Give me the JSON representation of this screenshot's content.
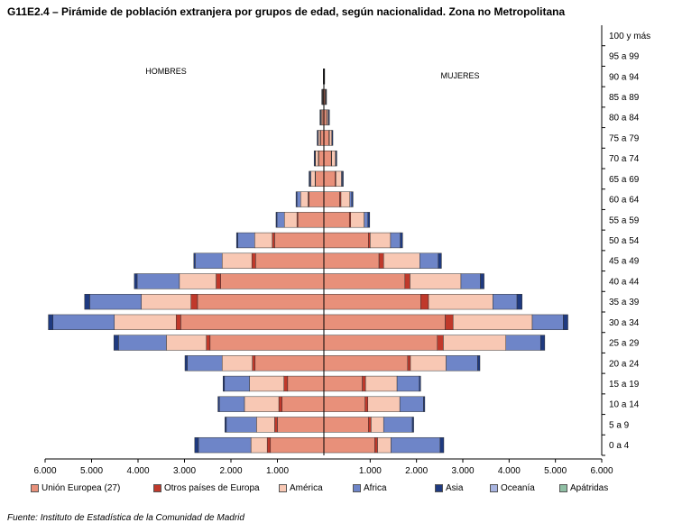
{
  "title": "G11E2.4 – Pirámide de población extranjera por grupos de edad, según nacionalidad. Zona no Metropolitana",
  "source": "Fuente: Instituto de Estadística de la Comunidad de Madrid",
  "colors": {
    "ue27": "#E8907A",
    "otros_europa": "#C0392B",
    "america": "#F8C8B4",
    "africa": "#6E85C8",
    "asia": "#1F3A80",
    "oceania": "#A8B4E0",
    "apatridas": "#8FBFA4"
  },
  "chart_data": {
    "type": "bar",
    "orientation": "horizontal",
    "stacked": true,
    "side_labels": {
      "left": "HOMBRES",
      "right": "MUJERES"
    },
    "xlim": [
      -6000,
      6000
    ],
    "x_tick_values": [
      -6000,
      -5000,
      -4000,
      -3000,
      -2000,
      -1000,
      1000,
      2000,
      3000,
      4000,
      5000,
      6000
    ],
    "x_tick_labels": [
      "6.000",
      "5.000",
      "4.000",
      "3.000",
      "2.000",
      "1.000",
      "1.000",
      "2.000",
      "3.000",
      "4.000",
      "5.000",
      "6.000"
    ],
    "categories": [
      "0 a 4",
      "5 a 9",
      "10 a 14",
      "15 a 19",
      "20 a 24",
      "25 a 29",
      "30 a 34",
      "35 a 39",
      "40 a 44",
      "45 a 49",
      "50 a 54",
      "55 a 59",
      "60 a 64",
      "65 a 69",
      "70 a 74",
      "75 a 79",
      "80 a 84",
      "85 a 89",
      "90 a 94",
      "95 a 99",
      "100 y más"
    ],
    "legend": [
      "Unión Europea (27)",
      "Otros países de Europa",
      "América",
      "Africa",
      "Asia",
      "Oceanía",
      "Apátridas"
    ],
    "series_colors": [
      "#E8907A",
      "#C0392B",
      "#F8C8B4",
      "#6E85C8",
      "#1F3A80",
      "#A8B4E0",
      "#8FBFA4"
    ],
    "hombres": [
      [
        1150,
        70,
        350,
        1130,
        80,
        0,
        0
      ],
      [
        1000,
        60,
        390,
        650,
        30,
        0,
        0
      ],
      [
        900,
        70,
        740,
        540,
        30,
        0,
        0
      ],
      [
        780,
        80,
        740,
        540,
        30,
        0,
        0
      ],
      [
        1480,
        60,
        650,
        750,
        50,
        0,
        0
      ],
      [
        2450,
        80,
        860,
        1030,
        100,
        0,
        0
      ],
      [
        3080,
        100,
        1330,
        1320,
        100,
        0,
        0
      ],
      [
        2720,
        140,
        1070,
        1110,
        110,
        0,
        0
      ],
      [
        2220,
        100,
        790,
        910,
        60,
        0,
        0
      ],
      [
        1470,
        80,
        640,
        580,
        30,
        0,
        0
      ],
      [
        1060,
        50,
        380,
        360,
        30,
        0,
        0
      ],
      [
        560,
        20,
        270,
        160,
        20,
        0,
        0
      ],
      [
        320,
        20,
        160,
        80,
        20,
        0,
        0
      ],
      [
        180,
        10,
        90,
        20,
        20,
        0,
        0
      ],
      [
        110,
        10,
        60,
        10,
        20,
        0,
        0
      ],
      [
        70,
        10,
        40,
        5,
        20,
        0,
        0
      ],
      [
        40,
        5,
        20,
        5,
        15,
        0,
        0
      ],
      [
        20,
        3,
        10,
        3,
        10,
        0,
        0
      ],
      [
        5,
        1,
        2,
        1,
        5,
        0,
        0
      ],
      [
        0,
        0,
        0,
        0,
        0,
        0,
        0
      ],
      [
        0,
        0,
        0,
        0,
        0,
        0,
        0
      ]
    ],
    "mujeres": [
      [
        1100,
        60,
        290,
        1060,
        80,
        0,
        0
      ],
      [
        960,
        60,
        270,
        620,
        30,
        0,
        0
      ],
      [
        890,
        60,
        690,
        510,
        30,
        0,
        0
      ],
      [
        830,
        70,
        680,
        480,
        30,
        0,
        0
      ],
      [
        1810,
        60,
        770,
        680,
        50,
        0,
        0
      ],
      [
        2450,
        130,
        1350,
        750,
        90,
        0,
        0
      ],
      [
        2620,
        170,
        1710,
        670,
        100,
        0,
        0
      ],
      [
        2090,
        170,
        1390,
        520,
        110,
        0,
        0
      ],
      [
        1750,
        110,
        1100,
        420,
        80,
        0,
        0
      ],
      [
        1190,
        100,
        780,
        400,
        70,
        0,
        0
      ],
      [
        960,
        40,
        440,
        210,
        50,
        0,
        0
      ],
      [
        550,
        30,
        290,
        80,
        40,
        0,
        0
      ],
      [
        340,
        30,
        190,
        40,
        30,
        0,
        0
      ],
      [
        240,
        20,
        120,
        20,
        20,
        0,
        0
      ],
      [
        160,
        10,
        80,
        10,
        20,
        0,
        0
      ],
      [
        110,
        10,
        50,
        5,
        20,
        0,
        0
      ],
      [
        60,
        5,
        30,
        5,
        20,
        0,
        0
      ],
      [
        30,
        5,
        10,
        3,
        10,
        0,
        0
      ],
      [
        8,
        1,
        3,
        1,
        5,
        0,
        0
      ],
      [
        0,
        0,
        0,
        0,
        0,
        0,
        0
      ],
      [
        0,
        0,
        0,
        0,
        0,
        0,
        0
      ]
    ]
  }
}
